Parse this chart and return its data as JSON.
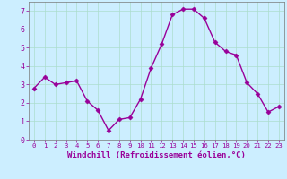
{
  "x": [
    0,
    1,
    2,
    3,
    4,
    5,
    6,
    7,
    8,
    9,
    10,
    11,
    12,
    13,
    14,
    15,
    16,
    17,
    18,
    19,
    20,
    21,
    22,
    23
  ],
  "y": [
    2.8,
    3.4,
    3.0,
    3.1,
    3.2,
    2.1,
    1.6,
    0.5,
    1.1,
    1.2,
    2.2,
    3.9,
    5.2,
    6.8,
    7.1,
    7.1,
    6.6,
    5.3,
    4.8,
    4.6,
    3.1,
    2.5,
    1.5,
    1.8
  ],
  "line_color": "#990099",
  "marker": "D",
  "marker_size": 2.5,
  "line_width": 1.0,
  "bg_color": "#cceeff",
  "grid_color": "#aaddcc",
  "xlabel": "Windchill (Refroidissement éolien,°C)",
  "xlabel_color": "#990099",
  "tick_color": "#990099",
  "ylim": [
    0,
    7.5
  ],
  "xlim": [
    -0.5,
    23.5
  ],
  "yticks": [
    0,
    1,
    2,
    3,
    4,
    5,
    6,
    7
  ],
  "xticks": [
    0,
    1,
    2,
    3,
    4,
    5,
    6,
    7,
    8,
    9,
    10,
    11,
    12,
    13,
    14,
    15,
    16,
    17,
    18,
    19,
    20,
    21,
    22,
    23
  ],
  "label_fontsize": 6.5,
  "tick_fontsize": 6,
  "xtick_fontsize": 5.2
}
